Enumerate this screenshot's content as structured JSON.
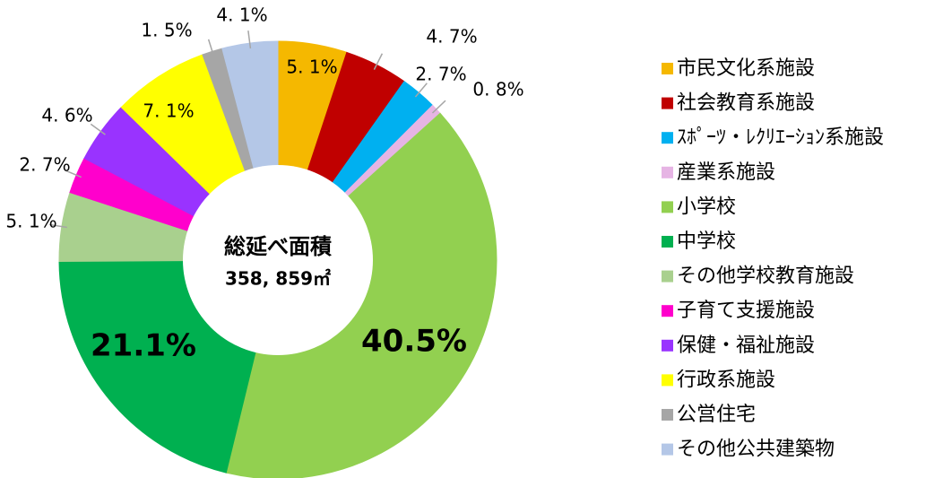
{
  "chart_data": {
    "type": "donut",
    "center_title": "総延べ面積",
    "center_subtitle": "358, 859㎡",
    "categories": [
      "市民文化系施設",
      "社会教育系施設",
      "ｽﾎﾟｰﾂ・ﾚｸﾘｴｰｼｮﾝ系施設",
      "産業系施設",
      "小学校",
      "中学校",
      "その他学校教育施設",
      "子育て支援施設",
      "保健・福祉施設",
      "行政系施設",
      "公営住宅",
      "その他公共建築物"
    ],
    "values": [
      5.1,
      4.7,
      2.7,
      0.8,
      40.5,
      21.1,
      5.1,
      2.7,
      4.6,
      7.1,
      1.5,
      4.1
    ],
    "value_labels": [
      "5. 1%",
      "4. 7%",
      "2. 7%",
      "0. 8%",
      "40.5%",
      "21.1%",
      "5. 1%",
      "2. 7%",
      "4. 6%",
      "7. 1%",
      "1. 5%",
      "4. 1%"
    ],
    "colors": [
      "#f5b800",
      "#c00000",
      "#00b0f0",
      "#e6b4e4",
      "#92d050",
      "#00b050",
      "#a9d08e",
      "#ff00cc",
      "#9933ff",
      "#ffff00",
      "#a6a6a6",
      "#b4c7e7"
    ],
    "legend": "right"
  }
}
